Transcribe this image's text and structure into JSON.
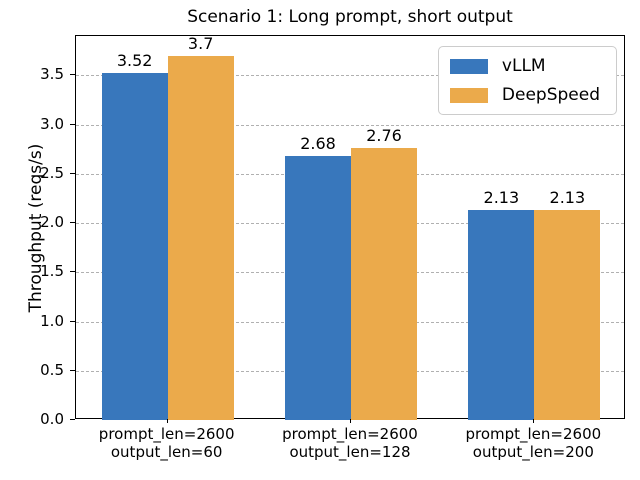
{
  "chart_data": {
    "type": "bar",
    "title": "Scenario 1: Long prompt, short output",
    "xlabel": "",
    "ylabel": "Throughput (reqs/s)",
    "categories": [
      "prompt_len=2600\noutput_len=60",
      "prompt_len=2600\noutput_len=128",
      "prompt_len=2600\noutput_len=200"
    ],
    "series": [
      {
        "name": "vLLM",
        "color": "#3877bc",
        "values": [
          3.52,
          2.68,
          2.13
        ]
      },
      {
        "name": "DeepSpeed",
        "color": "#ebaa4b",
        "values": [
          3.7,
          2.76,
          2.13
        ]
      }
    ],
    "bar_value_labels": [
      "3.52",
      "2.68",
      "2.13",
      "3.7",
      "2.76",
      "2.13"
    ],
    "ylim": [
      0,
      3.9
    ],
    "yticks": [
      "0.0",
      "0.5",
      "1.0",
      "1.5",
      "2.0",
      "2.5",
      "3.0",
      "3.5"
    ],
    "grid": "horizontal-dashed",
    "grid_color": "#b0b0b0",
    "axis_color": "#000000",
    "legend_position": "upper-right"
  }
}
